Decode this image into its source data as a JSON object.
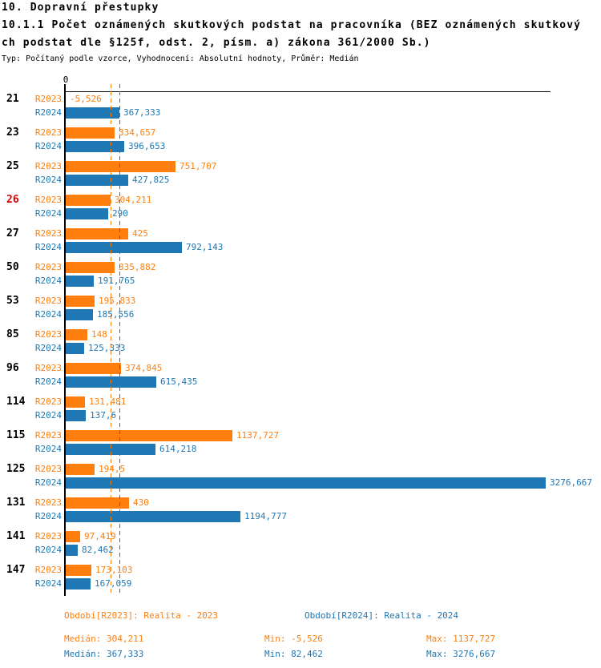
{
  "header": {
    "section_title": "10. Dopravní přestupky",
    "title_line1": "10.1.1 Počet oznámených skutkových podstat na pracovníka (BEZ oznámených skutkový",
    "title_line2": "ch podstat dle §125f, odst. 2, písm. a) zákona 361/2000 Sb.)",
    "subtitle": "Typ: Počítaný podle vzorce, Vyhodnocení: Absolutní hodnoty, Průměr: Medián"
  },
  "colors": {
    "r2023": "#FF7F0E",
    "r2024": "#1F77B4",
    "highlight": "#DD0000",
    "axis": "#000000"
  },
  "axis": {
    "zero_label": "0"
  },
  "chart_data": {
    "type": "bar",
    "orientation": "horizontal",
    "title": "10.1.1 Počet oznámených skutkových podstat na pracovníka (BEZ oznámených skutkových podstat dle §125f, odst. 2, písm. a) zákona 361/2000 Sb.)",
    "categories": [
      "21",
      "23",
      "25",
      "26",
      "27",
      "50",
      "53",
      "85",
      "96",
      "114",
      "115",
      "125",
      "131",
      "141",
      "147"
    ],
    "highlighted_category": "26",
    "series": [
      {
        "name": "R2023",
        "color": "#FF7F0E",
        "values": [
          -5.526,
          334.657,
          751.707,
          304.211,
          425,
          335.882,
          195.833,
          148,
          374.845,
          131.481,
          1137.727,
          194.5,
          430,
          97.419,
          173.103
        ],
        "labels": [
          "-5,526",
          "334,657",
          "751,707",
          "304,211",
          "425",
          "335,882",
          "195,833",
          "148",
          "374,845",
          "131,481",
          "1137,727",
          "194,5",
          "430",
          "97,419",
          "173,103"
        ],
        "median": 304.211
      },
      {
        "name": "R2024",
        "color": "#1F77B4",
        "values": [
          367.333,
          396.653,
          427.825,
          290,
          792.143,
          191.765,
          185.556,
          125.333,
          615.435,
          137.6,
          614.218,
          3276.667,
          1194.777,
          82.462,
          167.059
        ],
        "labels": [
          "367,333",
          "396,653",
          "427,825",
          "290",
          "792,143",
          "191,765",
          "185,556",
          "125,333",
          "615,435",
          "137,6",
          "614,218",
          "3276,667",
          "1194,777",
          "82,462",
          "167,059"
        ],
        "median": 367.333
      }
    ],
    "xlim": [
      -20,
      3310
    ],
    "grid": false,
    "legend_position": "bottom"
  },
  "legend": {
    "r2023": "Období[R2023]: Realita - 2023",
    "r2024": "Období[R2024]: Realita - 2024",
    "stats_r2023": {
      "median": "Medián: 304,211",
      "min": "Min: -5,526",
      "max": "Max: 1137,727"
    },
    "stats_r2024": {
      "median": "Medián: 367,333",
      "min": "Min: 82,462",
      "max": "Max: 3276,667"
    }
  }
}
